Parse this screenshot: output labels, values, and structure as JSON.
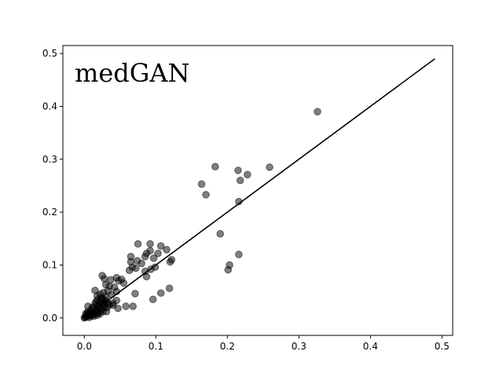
{
  "chart_data": {
    "type": "scatter",
    "title": "",
    "xlabel": "",
    "ylabel": "",
    "annotation": "medGAN",
    "xlim": [
      -0.03,
      0.515
    ],
    "ylim": [
      -0.033,
      0.515
    ],
    "xticks": [
      0.0,
      0.1,
      0.2,
      0.3,
      0.4,
      0.5
    ],
    "yticks": [
      0.0,
      0.1,
      0.2,
      0.3,
      0.4,
      0.5
    ],
    "xtick_labels": [
      "0.0",
      "0.1",
      "0.2",
      "0.3",
      "0.4",
      "0.5"
    ],
    "ytick_labels": [
      "0.0",
      "0.1",
      "0.2",
      "0.3",
      "0.4",
      "0.5"
    ],
    "grid": false,
    "point_color": "#000000",
    "point_opacity": 0.5,
    "reference_line": {
      "x": [
        0.0,
        0.49
      ],
      "y": [
        0.0,
        0.49
      ],
      "color": "#000000"
    },
    "points": [
      [
        0.326,
        0.39
      ],
      [
        0.259,
        0.285
      ],
      [
        0.183,
        0.286
      ],
      [
        0.215,
        0.279
      ],
      [
        0.228,
        0.271
      ],
      [
        0.218,
        0.26
      ],
      [
        0.164,
        0.253
      ],
      [
        0.17,
        0.233
      ],
      [
        0.216,
        0.22
      ],
      [
        0.19,
        0.159
      ],
      [
        0.216,
        0.12
      ],
      [
        0.203,
        0.1
      ],
      [
        0.201,
        0.091
      ],
      [
        0.075,
        0.14
      ],
      [
        0.092,
        0.14
      ],
      [
        0.107,
        0.136
      ],
      [
        0.115,
        0.129
      ],
      [
        0.092,
        0.127
      ],
      [
        0.103,
        0.122
      ],
      [
        0.087,
        0.122
      ],
      [
        0.085,
        0.116
      ],
      [
        0.065,
        0.116
      ],
      [
        0.097,
        0.113
      ],
      [
        0.122,
        0.11
      ],
      [
        0.074,
        0.108
      ],
      [
        0.12,
        0.106
      ],
      [
        0.065,
        0.106
      ],
      [
        0.08,
        0.103
      ],
      [
        0.067,
        0.096
      ],
      [
        0.099,
        0.096
      ],
      [
        0.072,
        0.094
      ],
      [
        0.093,
        0.092
      ],
      [
        0.063,
        0.09
      ],
      [
        0.085,
        0.088
      ],
      [
        0.087,
        0.078
      ],
      [
        0.025,
        0.08
      ],
      [
        0.028,
        0.074
      ],
      [
        0.045,
        0.076
      ],
      [
        0.052,
        0.073
      ],
      [
        0.037,
        0.072
      ],
      [
        0.048,
        0.07
      ],
      [
        0.055,
        0.066
      ],
      [
        0.03,
        0.063
      ],
      [
        0.035,
        0.06
      ],
      [
        0.042,
        0.058
      ],
      [
        0.119,
        0.056
      ],
      [
        0.015,
        0.052
      ],
      [
        0.033,
        0.051
      ],
      [
        0.045,
        0.05
      ],
      [
        0.027,
        0.048
      ],
      [
        0.107,
        0.047
      ],
      [
        0.071,
        0.046
      ],
      [
        0.022,
        0.045
      ],
      [
        0.038,
        0.044
      ],
      [
        0.018,
        0.042
      ],
      [
        0.03,
        0.04
      ],
      [
        0.096,
        0.035
      ],
      [
        0.025,
        0.035
      ],
      [
        0.045,
        0.033
      ],
      [
        0.04,
        0.028
      ],
      [
        0.02,
        0.027
      ],
      [
        0.058,
        0.022
      ],
      [
        0.068,
        0.022
      ],
      [
        0.047,
        0.018
      ],
      [
        0.04,
        0.024
      ],
      [
        0.031,
        0.012
      ],
      [
        0.005,
        0.022
      ],
      [
        0.012,
        0.018
      ],
      [
        0.022,
        0.03
      ],
      [
        0.025,
        0.036
      ],
      [
        0.018,
        0.034
      ],
      [
        0.027,
        0.024
      ],
      [
        0.015,
        0.026
      ],
      [
        0.01,
        0.014
      ],
      [
        0.008,
        0.01
      ],
      [
        0.006,
        0.006
      ],
      [
        0.004,
        0.004
      ],
      [
        0.003,
        0.002
      ],
      [
        0.001,
        0.001
      ],
      [
        0.002,
        0.003
      ],
      [
        0.012,
        0.008
      ],
      [
        0.016,
        0.01
      ],
      [
        0.02,
        0.012
      ],
      [
        0.024,
        0.016
      ],
      [
        0.028,
        0.02
      ],
      [
        0.009,
        0.004
      ],
      [
        0.014,
        0.006
      ],
      [
        0.018,
        0.005
      ],
      [
        0.022,
        0.008
      ],
      [
        0.026,
        0.012
      ],
      [
        0.005,
        0.012
      ],
      [
        0.011,
        0.02
      ],
      [
        0.017,
        0.015
      ],
      [
        0.021,
        0.02
      ],
      [
        0.03,
        0.03
      ],
      [
        0.033,
        0.028
      ],
      [
        0.032,
        0.02
      ],
      [
        0.019,
        0.023
      ],
      [
        0.013,
        0.003
      ],
      [
        0.007,
        0.001
      ],
      [
        0.002,
        0.008
      ],
      [
        0.016,
        0.03
      ],
      [
        0.023,
        0.038
      ],
      [
        0.029,
        0.034
      ],
      [
        0.035,
        0.025
      ],
      [
        0.01,
        0.006
      ],
      [
        0.0,
        0.0
      ],
      [
        0.004,
        0.009
      ],
      [
        0.019,
        0.009
      ],
      [
        0.026,
        0.027
      ]
    ]
  }
}
